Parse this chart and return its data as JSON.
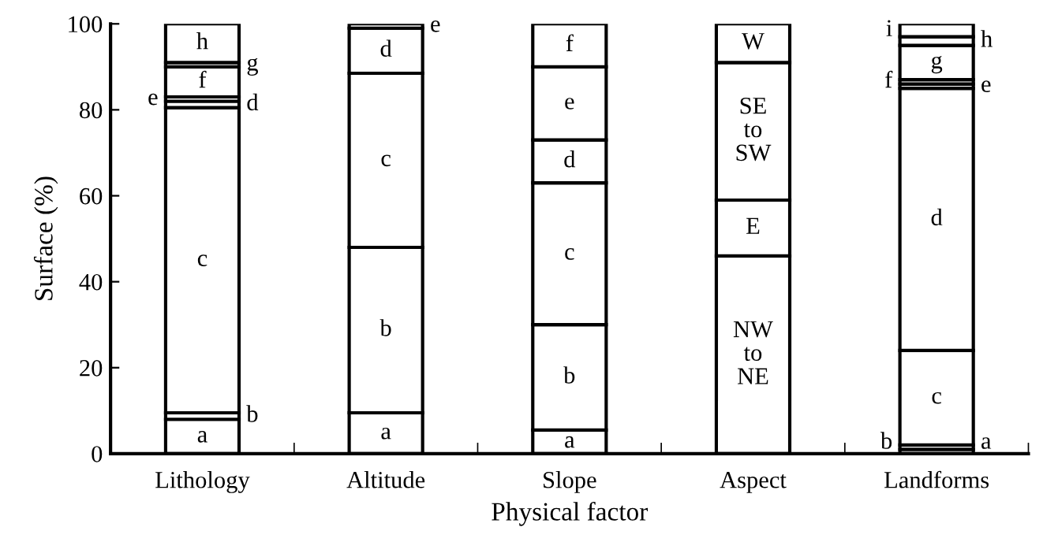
{
  "chart_data": {
    "type": "bar",
    "stacked": true,
    "xlabel": "Physical factor",
    "ylabel": "Surface (%)",
    "categories": [
      "Lithology",
      "Altitude",
      "Slope",
      "Aspect",
      "Landforms"
    ],
    "ylim": [
      0,
      100
    ],
    "yticks": [
      0,
      20,
      40,
      60,
      80,
      100
    ],
    "grid": false,
    "legend": false,
    "series": [
      {
        "color": "#ffffff",
        "values": [
          8,
          9.5,
          5.5,
          46,
          1
        ],
        "value_labels": [
          "a",
          "a",
          "a",
          "NW\nto\nNE",
          "a"
        ]
      },
      {
        "color": "#ffffff",
        "values": [
          1.5,
          38.5,
          24.5,
          13,
          1
        ],
        "value_labels": [
          "b",
          "b",
          "b",
          "E",
          "b"
        ]
      },
      {
        "color": "#ffffff",
        "values": [
          71,
          40.5,
          33,
          32,
          22
        ],
        "value_labels": [
          "c",
          "c",
          "c",
          "SE\nto\nSW",
          "c"
        ]
      },
      {
        "color": "#ffffff",
        "values": [
          1.5,
          10.5,
          10,
          9,
          61
        ],
        "value_labels": [
          "d",
          "d",
          "d",
          "W",
          "d"
        ]
      },
      {
        "color": "#ffffff",
        "values": [
          1,
          1,
          17,
          null,
          1
        ],
        "value_labels": [
          "e",
          "e",
          "e",
          null,
          "e"
        ]
      },
      {
        "color": "#ffffff",
        "values": [
          7,
          null,
          10,
          null,
          1
        ],
        "value_labels": [
          "f",
          null,
          "f",
          null,
          "f"
        ]
      },
      {
        "color": "#ffffff",
        "values": [
          1,
          null,
          null,
          null,
          8
        ],
        "value_labels": [
          "g",
          null,
          null,
          null,
          "g"
        ]
      },
      {
        "color": "#ffffff",
        "values": [
          9,
          null,
          null,
          null,
          2
        ],
        "value_labels": [
          "h",
          null,
          null,
          null,
          "h"
        ]
      },
      {
        "color": "#ffffff",
        "values": [
          null,
          null,
          null,
          null,
          3
        ],
        "value_labels": [
          null,
          null,
          null,
          null,
          "i"
        ]
      }
    ]
  }
}
